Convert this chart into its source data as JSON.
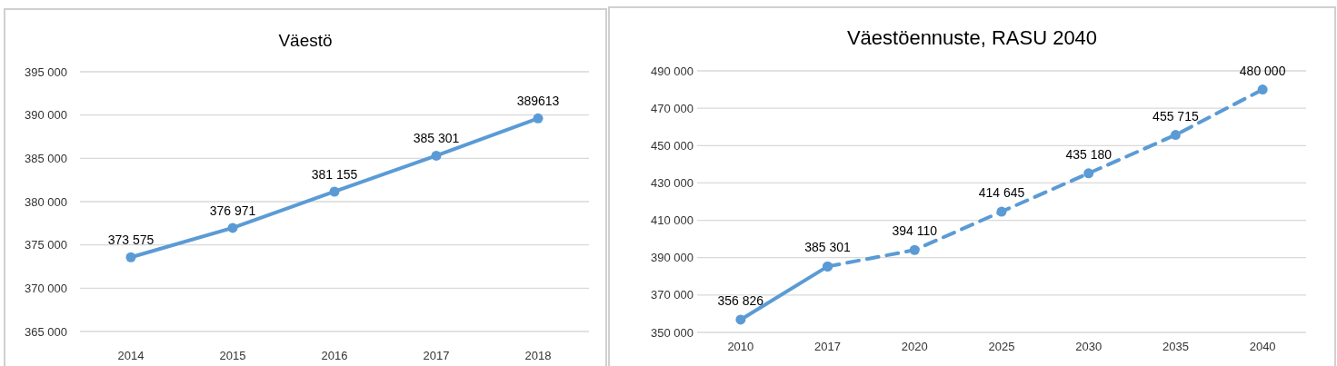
{
  "chart_data": [
    {
      "type": "line",
      "title": "Väestö",
      "categories": [
        "2014",
        "2015",
        "2016",
        "2017",
        "2018"
      ],
      "series": [
        {
          "color": "#5b9bd5",
          "values": [
            373575,
            376971,
            381155,
            385301,
            389613
          ],
          "value_labels": [
            "373 575",
            "376 971",
            "381 155",
            "385 301",
            "389613"
          ]
        }
      ],
      "ylim": [
        365000,
        395000
      ],
      "yticks": [
        {
          "value": 365000,
          "label": "365 000"
        },
        {
          "value": 370000,
          "label": "370 000"
        },
        {
          "value": 375000,
          "label": "375 000"
        },
        {
          "value": 380000,
          "label": "380 000"
        },
        {
          "value": 385000,
          "label": "385 000"
        },
        {
          "value": 390000,
          "label": "390 000"
        },
        {
          "value": 395000,
          "label": "395 000"
        }
      ],
      "grid": "y",
      "marker": "circle",
      "line_style": "solid"
    },
    {
      "type": "line",
      "title": "Väestöennuste, RASU 2040",
      "categories": [
        "2010",
        "2017",
        "2020",
        "2025",
        "2030",
        "2035",
        "2040"
      ],
      "series": [
        {
          "color": "#5b9bd5",
          "line_style": "solid",
          "values": [
            356826,
            385301,
            null,
            null,
            null,
            null,
            null
          ],
          "value_labels": [
            "356 826",
            "385 301",
            null,
            null,
            null,
            null,
            null
          ]
        },
        {
          "color": "#5b9bd5",
          "line_style": "dashed",
          "values": [
            null,
            385301,
            394110,
            414645,
            435180,
            455715,
            480000
          ],
          "value_labels": [
            null,
            null,
            "394 110",
            "414 645",
            "435 180",
            "455 715",
            "480 000"
          ]
        }
      ],
      "ylim": [
        350000,
        490000
      ],
      "yticks": [
        {
          "value": 350000,
          "label": "350 000"
        },
        {
          "value": 370000,
          "label": "370 000"
        },
        {
          "value": 390000,
          "label": "390 000"
        },
        {
          "value": 410000,
          "label": "410 000"
        },
        {
          "value": 430000,
          "label": "430 000"
        },
        {
          "value": 450000,
          "label": "450 000"
        },
        {
          "value": 470000,
          "label": "470 000"
        },
        {
          "value": 490000,
          "label": "490 000"
        }
      ],
      "grid": "y",
      "marker": "circle"
    }
  ]
}
